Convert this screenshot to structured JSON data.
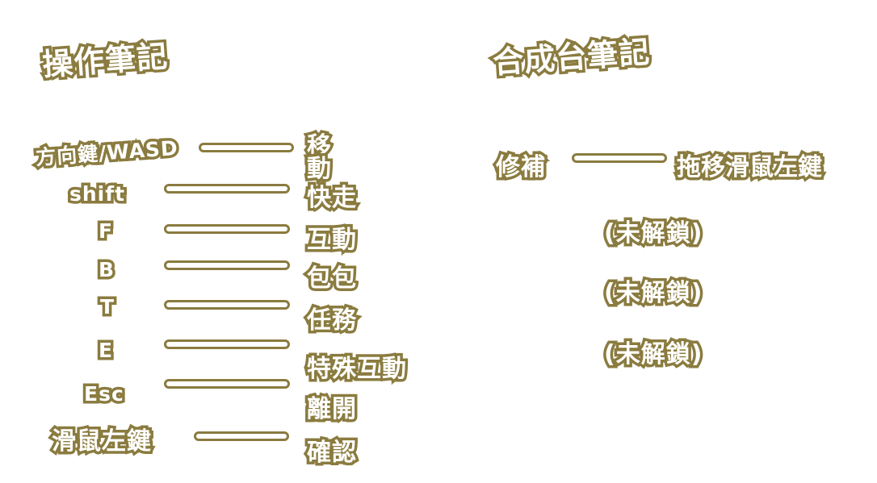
{
  "operation_notes": {
    "title": "操作筆記",
    "rows": [
      {
        "key": "方向鍵/WASD",
        "action": "移動"
      },
      {
        "key": "shift",
        "action": "快走"
      },
      {
        "key": "F",
        "action": "互動"
      },
      {
        "key": "B",
        "action": "包包"
      },
      {
        "key": "T",
        "action": "任務"
      },
      {
        "key": "E",
        "action": "特殊互動"
      },
      {
        "key": "Esc",
        "action": "離開"
      },
      {
        "key": "滑鼠左鍵",
        "action": "確認"
      }
    ]
  },
  "crafting_notes": {
    "title": "合成台筆記",
    "row": {
      "key": "修補",
      "action": "拖移滑鼠左鍵"
    },
    "locked": [
      "(未解鎖)",
      "(未解鎖)",
      "(未解鎖)"
    ]
  },
  "colors": {
    "outline": "#8a7b3f",
    "fill": "#ffffff"
  }
}
